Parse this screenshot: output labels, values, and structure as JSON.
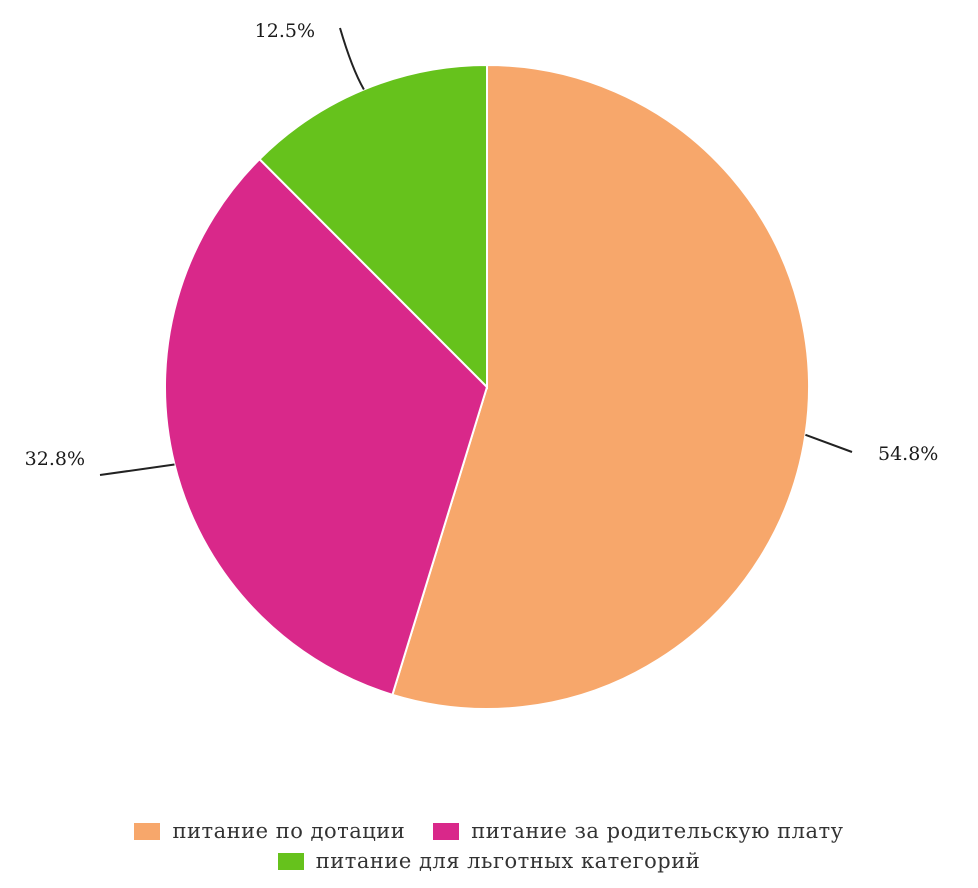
{
  "chart_data": {
    "type": "pie",
    "title": "",
    "start_angle_deg": 0,
    "direction": "clockwise",
    "slices": [
      {
        "name": "питание по дотации",
        "value": 54.8,
        "label": "54.8%",
        "color": "#f7a76b"
      },
      {
        "name": "питание за родительскую плату",
        "value": 32.8,
        "label": "32.8%",
        "color": "#d9288a"
      },
      {
        "name": "питание для льготных категорий",
        "value": 12.5,
        "label": "12.5%",
        "color": "#66c21c"
      }
    ],
    "legend": {
      "position": "bottom"
    }
  }
}
